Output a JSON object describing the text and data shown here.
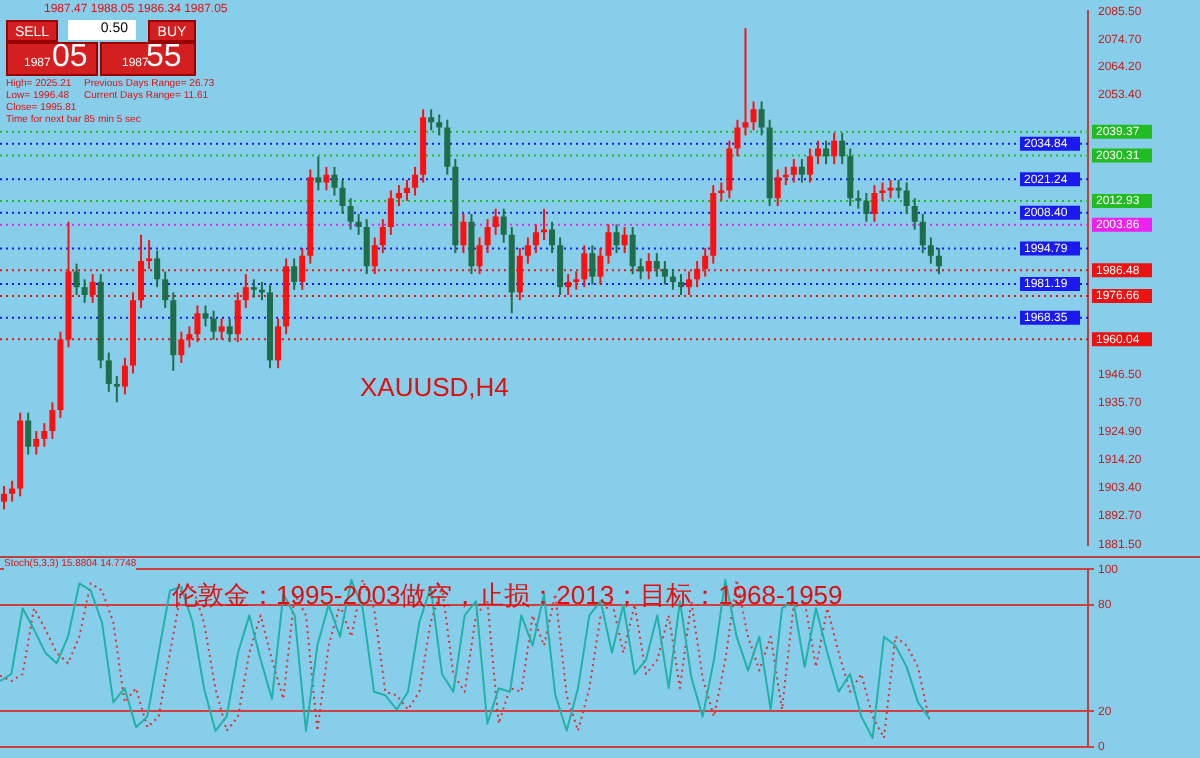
{
  "chart_data": [
    {
      "type": "candlestick",
      "annotations": [
        "1987.47 1988.05 1986.34 1987.05",
        "SELL",
        "0.50",
        "BUY",
        "1987",
        "05",
        "1987",
        "55",
        "High= 2025.21",
        "Previous Days Range= 26.73",
        "Low= 1996.48",
        "Current Days Range= 11.61",
        "Close= 1995.81",
        "Time for next bar 85 min 5 sec",
        "XAUUSD,H4"
      ],
      "categories": [
        null,
        null,
        null,
        null,
        null,
        null,
        null,
        null,
        null,
        null,
        null,
        null,
        null,
        null,
        null,
        null,
        null,
        null,
        null,
        null,
        null,
        null,
        null,
        null,
        null,
        null,
        null,
        null,
        null,
        null,
        null,
        null,
        null,
        null,
        null,
        null,
        null,
        null,
        null,
        null,
        null,
        null,
        null,
        null,
        null,
        null,
        null,
        null,
        null,
        null,
        null,
        null,
        null,
        null,
        null,
        null,
        null,
        null,
        null,
        null,
        null,
        null,
        null,
        null,
        null,
        null,
        null,
        null,
        null,
        null,
        null,
        null,
        null,
        null,
        null,
        null,
        null,
        null,
        null,
        null,
        null,
        null,
        null,
        null,
        null,
        null,
        null,
        null,
        null,
        null,
        null,
        null,
        null,
        null,
        null,
        null,
        null,
        null,
        null,
        null,
        null,
        null,
        null,
        null,
        null,
        null,
        null,
        null,
        null,
        null,
        null,
        null,
        null,
        null,
        null,
        null,
        null,
        null,
        null,
        null,
        null,
        null,
        null,
        null,
        null,
        null,
        null,
        null,
        null,
        null,
        null,
        null,
        null,
        null,
        null
      ],
      "ohlc": [
        [
          1898,
          1904,
          1895,
          1901
        ],
        [
          1901,
          1906,
          1898,
          1903
        ],
        [
          1903,
          1932,
          1900,
          1929
        ],
        [
          1929,
          1932,
          1916,
          1919
        ],
        [
          1919,
          1925,
          1916,
          1922
        ],
        [
          1922,
          1928,
          1919,
          1925
        ],
        [
          1925,
          1936,
          1922,
          1933
        ],
        [
          1933,
          1963,
          1930,
          1960
        ],
        [
          1960,
          2005,
          1957,
          1986
        ],
        [
          1986,
          1989,
          1977,
          1980
        ],
        [
          1980,
          1983,
          1974,
          1977
        ],
        [
          1977,
          1985,
          1974,
          1982
        ],
        [
          1982,
          1985,
          1949,
          1952
        ],
        [
          1952,
          1955,
          1940,
          1943
        ],
        [
          1943,
          1946,
          1936,
          1942
        ],
        [
          1942,
          1953,
          1939,
          1950
        ],
        [
          1950,
          1978,
          1947,
          1975
        ],
        [
          1975,
          2000,
          1972,
          1990
        ],
        [
          1990,
          1998,
          1987,
          1991
        ],
        [
          1991,
          1994,
          1980,
          1983
        ],
        [
          1983,
          1986,
          1972,
          1975
        ],
        [
          1975,
          1978,
          1948,
          1954
        ],
        [
          1954,
          1963,
          1951,
          1960
        ],
        [
          1960,
          1965,
          1957,
          1962
        ],
        [
          1962,
          1973,
          1959,
          1970
        ],
        [
          1970,
          1973,
          1965,
          1968
        ],
        [
          1968,
          1971,
          1960,
          1963
        ],
        [
          1963,
          1968,
          1960,
          1965
        ],
        [
          1965,
          1968,
          1959,
          1962
        ],
        [
          1962,
          1978,
          1959,
          1975
        ],
        [
          1975,
          1985,
          1972,
          1980
        ],
        [
          1980,
          1983,
          1976,
          1979
        ],
        [
          1979,
          1982,
          1975,
          1978
        ],
        [
          1978,
          1981,
          1949,
          1952
        ],
        [
          1952,
          1968,
          1949,
          1965
        ],
        [
          1965,
          1991,
          1962,
          1988
        ],
        [
          1988,
          1991,
          1979,
          1982
        ],
        [
          1982,
          1995,
          1979,
          1992
        ],
        [
          1992,
          2025,
          1989,
          2022
        ],
        [
          2022,
          2030,
          2017,
          2020
        ],
        [
          2020,
          2026,
          2017,
          2023
        ],
        [
          2023,
          2026,
          2015,
          2018
        ],
        [
          2018,
          2021,
          2008,
          2011
        ],
        [
          2011,
          2014,
          2002,
          2005
        ],
        [
          2005,
          2008,
          2000,
          2003
        ],
        [
          2003,
          2006,
          1985,
          1988
        ],
        [
          1988,
          1999,
          1985,
          1996
        ],
        [
          1996,
          2006,
          1993,
          2003
        ],
        [
          2003,
          2017,
          2000,
          2014
        ],
        [
          2014,
          2019,
          2011,
          2016
        ],
        [
          2016,
          2021,
          2013,
          2018
        ],
        [
          2018,
          2026,
          2015,
          2023
        ],
        [
          2023,
          2048,
          2020,
          2045
        ],
        [
          2045,
          2048,
          2040,
          2043
        ],
        [
          2043,
          2046,
          2038,
          2041
        ],
        [
          2041,
          2044,
          2023,
          2026
        ],
        [
          2026,
          2029,
          1993,
          1996
        ],
        [
          1996,
          2008,
          1993,
          2005
        ],
        [
          2005,
          2008,
          1985,
          1988
        ],
        [
          1988,
          1999,
          1985,
          1996
        ],
        [
          1996,
          2006,
          1993,
          2003
        ],
        [
          2003,
          2010,
          2000,
          2007
        ],
        [
          2007,
          2010,
          1997,
          2000
        ],
        [
          2000,
          2003,
          1970,
          1978
        ],
        [
          1978,
          1995,
          1975,
          1992
        ],
        [
          1992,
          1999,
          1989,
          1996
        ],
        [
          1996,
          2004,
          1993,
          2001
        ],
        [
          2001,
          2010,
          1998,
          2002
        ],
        [
          2002,
          2005,
          1993,
          1996
        ],
        [
          1996,
          1999,
          1977,
          1980
        ],
        [
          1980,
          1985,
          1977,
          1982
        ],
        [
          1982,
          1986,
          1979,
          1983
        ],
        [
          1983,
          1996,
          1980,
          1993
        ],
        [
          1993,
          1996,
          1981,
          1984
        ],
        [
          1984,
          1995,
          1981,
          1992
        ],
        [
          1992,
          2004,
          1989,
          2001
        ],
        [
          2001,
          2004,
          1993,
          1996
        ],
        [
          1996,
          2003,
          1993,
          2000
        ],
        [
          2000,
          2003,
          1985,
          1988
        ],
        [
          1988,
          1991,
          1983,
          1986
        ],
        [
          1986,
          1993,
          1983,
          1990
        ],
        [
          1990,
          1993,
          1984,
          1987
        ],
        [
          1987,
          1990,
          1981,
          1984
        ],
        [
          1984,
          1987,
          1979,
          1982
        ],
        [
          1982,
          1985,
          1977,
          1980
        ],
        [
          1980,
          1986,
          1977,
          1983
        ],
        [
          1983,
          1990,
          1980,
          1987
        ],
        [
          1987,
          1995,
          1984,
          1992
        ],
        [
          1992,
          2019,
          1989,
          2016
        ],
        [
          2016,
          2020,
          2013,
          2017
        ],
        [
          2017,
          2036,
          2014,
          2033
        ],
        [
          2033,
          2044,
          2030,
          2041
        ],
        [
          2041,
          2079,
          2038,
          2043
        ],
        [
          2043,
          2051,
          2040,
          2048
        ],
        [
          2048,
          2051,
          2038,
          2041
        ],
        [
          2041,
          2044,
          2011,
          2014
        ],
        [
          2014,
          2025,
          2011,
          2022
        ],
        [
          2022,
          2026,
          2019,
          2023
        ],
        [
          2023,
          2029,
          2020,
          2026
        ],
        [
          2026,
          2029,
          2020,
          2023
        ],
        [
          2023,
          2033,
          2020,
          2030
        ],
        [
          2030,
          2036,
          2027,
          2033
        ],
        [
          2033,
          2036,
          2027,
          2030
        ],
        [
          2030,
          2039,
          2027,
          2036
        ],
        [
          2036,
          2039,
          2027,
          2030
        ],
        [
          2030,
          2033,
          2011,
          2014
        ],
        [
          2014,
          2017,
          2010,
          2013
        ],
        [
          2013,
          2016,
          2005,
          2008
        ],
        [
          2008,
          2019,
          2005,
          2016
        ],
        [
          2016,
          2020,
          2013,
          2017
        ],
        [
          2017,
          2021,
          2014,
          2018
        ],
        [
          2018,
          2021,
          2014,
          2017
        ],
        [
          2017,
          2020,
          2008,
          2011
        ],
        [
          2011,
          2014,
          2002,
          2005
        ],
        [
          2005,
          2008,
          1993,
          1996
        ],
        [
          1996,
          1999,
          1989,
          1992
        ],
        [
          1992,
          1995,
          1985,
          1988
        ],
        null,
        null,
        null,
        null,
        null,
        null,
        null,
        null,
        null,
        null,
        null,
        null,
        null,
        null,
        null,
        null,
        null,
        null
      ],
      "ylim": [
        1881.5,
        2085.5
      ],
      "yticks": [
        {
          "value": 2085.5,
          "label": "2085.50"
        },
        {
          "value": 2074.7,
          "label": "2074.70"
        },
        {
          "value": 2064.2,
          "label": "2064.20"
        },
        {
          "value": 2053.4,
          "label": "2053.40"
        },
        {
          "value": 1946.5,
          "label": "1946.50"
        },
        {
          "value": 1935.7,
          "label": "1935.70"
        },
        {
          "value": 1924.9,
          "label": "1924.90"
        },
        {
          "value": 1914.2,
          "label": "1914.20"
        },
        {
          "value": 1903.4,
          "label": "1903.40"
        },
        {
          "value": 1892.7,
          "label": "1892.70"
        },
        {
          "value": 1881.5,
          "label": "1881.50"
        }
      ],
      "ref_lines": [
        {
          "axis": "y",
          "value": 2039.37,
          "label": "2039.37",
          "color": "#22bb22",
          "line_style": "dotted"
        },
        {
          "axis": "y",
          "value": 2034.84,
          "label": "2034.84",
          "color": "#1a1aee",
          "line_style": "dotted"
        },
        {
          "axis": "y",
          "value": 2030.31,
          "label": "2030.31",
          "color": "#22bb22",
          "line_style": "dotted"
        },
        {
          "axis": "y",
          "value": 2021.24,
          "label": "2021.24",
          "color": "#1a1aee",
          "line_style": "dotted"
        },
        {
          "axis": "y",
          "value": 2012.93,
          "label": "2012.93",
          "color": "#22bb22",
          "line_style": "dotted"
        },
        {
          "axis": "y",
          "value": 2008.4,
          "label": "2008.40",
          "color": "#1a1aee",
          "line_style": "dotted"
        },
        {
          "axis": "y",
          "value": 2003.86,
          "label": "2003.86",
          "color": "#ee22ee",
          "line_style": "dotted"
        },
        {
          "axis": "y",
          "value": 1994.79,
          "label": "1994.79",
          "color": "#1a1aee",
          "line_style": "dotted"
        },
        {
          "axis": "y",
          "value": 1986.48,
          "label": "1986.48",
          "color": "#ee1111",
          "line_style": "dotted"
        },
        {
          "axis": "y",
          "value": 1981.19,
          "label": "1981.19",
          "color": "#1a1aee",
          "line_style": "dotted"
        },
        {
          "axis": "y",
          "value": 1976.66,
          "label": "1976.66",
          "color": "#ee1111",
          "line_style": "dotted"
        },
        {
          "axis": "y",
          "value": 1968.35,
          "label": "1968.35",
          "color": "#1a1aee",
          "line_style": "dotted"
        },
        {
          "axis": "y",
          "value": 1960.04,
          "label": "1960.04",
          "color": "#ee1111",
          "line_style": "dotted"
        }
      ],
      "grid": false,
      "legend": false,
      "tick_labels": "y"
    },
    {
      "type": "line",
      "annotations": [
        "Stoch(5,3,3) 15.8804 14.7748",
        "伦敦金：1995-2003做空，止损：2013；目标：1968-1959"
      ],
      "categories": [
        null,
        null,
        null,
        null,
        null,
        null,
        null,
        null,
        null,
        null,
        null,
        null,
        null,
        null,
        null,
        null,
        null,
        null,
        null,
        null,
        null,
        null,
        null,
        null,
        null,
        null,
        null,
        null,
        null,
        null,
        null,
        null,
        null,
        null,
        null,
        null,
        null,
        null,
        null,
        null,
        null,
        null,
        null,
        null,
        null,
        null,
        null,
        null,
        null,
        null,
        null,
        null,
        null,
        null,
        null,
        null,
        null,
        null,
        null,
        null,
        null,
        null,
        null,
        null,
        null,
        null,
        null,
        null,
        null,
        null,
        null,
        null,
        null,
        null,
        null,
        null,
        null,
        null,
        null,
        null,
        null,
        null,
        null,
        null,
        null,
        null,
        null,
        null,
        null,
        null,
        null,
        null,
        null,
        null,
        null,
        null,
        null
      ],
      "series": [
        {
          "color": "#20b2aa",
          "line_style": "solid",
          "values": [
            37,
            41,
            78,
            66,
            53,
            47,
            62,
            92,
            88,
            70,
            25,
            33,
            11,
            17,
            53,
            88,
            90,
            70,
            33,
            9,
            17,
            53,
            74,
            49,
            27,
            86,
            74,
            9,
            57,
            80,
            62,
            94,
            78,
            31,
            29,
            21,
            31,
            70,
            90,
            41,
            31,
            74,
            82,
            13,
            33,
            31,
            74,
            57,
            86,
            29,
            9,
            33,
            74,
            82,
            53,
            80,
            41,
            49,
            74,
            33,
            82,
            39,
            17,
            49,
            94,
            62,
            43,
            62,
            21,
            78,
            82,
            45,
            78,
            53,
            31,
            41,
            17,
            5,
            62,
            57,
            45,
            25,
            16,
            null,
            null,
            null,
            null,
            null,
            null,
            null,
            null,
            null,
            null,
            null,
            null,
            null,
            null
          ]
        },
        {
          "color": "#e03030",
          "line_style": "dotted",
          "values": [
            40,
            37,
            41,
            78,
            66,
            53,
            47,
            62,
            92,
            88,
            70,
            25,
            33,
            11,
            17,
            53,
            88,
            90,
            70,
            33,
            9,
            17,
            53,
            74,
            49,
            27,
            86,
            74,
            9,
            57,
            80,
            62,
            94,
            78,
            31,
            29,
            21,
            31,
            70,
            90,
            41,
            31,
            74,
            82,
            13,
            33,
            31,
            74,
            57,
            86,
            29,
            9,
            33,
            74,
            82,
            53,
            80,
            41,
            49,
            74,
            33,
            82,
            39,
            17,
            49,
            94,
            62,
            43,
            62,
            21,
            78,
            82,
            45,
            78,
            53,
            31,
            41,
            17,
            5,
            62,
            57,
            45,
            15,
            null,
            null,
            null,
            null,
            null,
            null,
            null,
            null,
            null,
            null,
            null,
            null,
            null,
            null
          ]
        }
      ],
      "ylim": [
        0,
        100
      ],
      "yticks": [
        0,
        20,
        80,
        100
      ],
      "grid": "y",
      "legend": false,
      "marker": "none",
      "tick_labels": "y"
    }
  ]
}
